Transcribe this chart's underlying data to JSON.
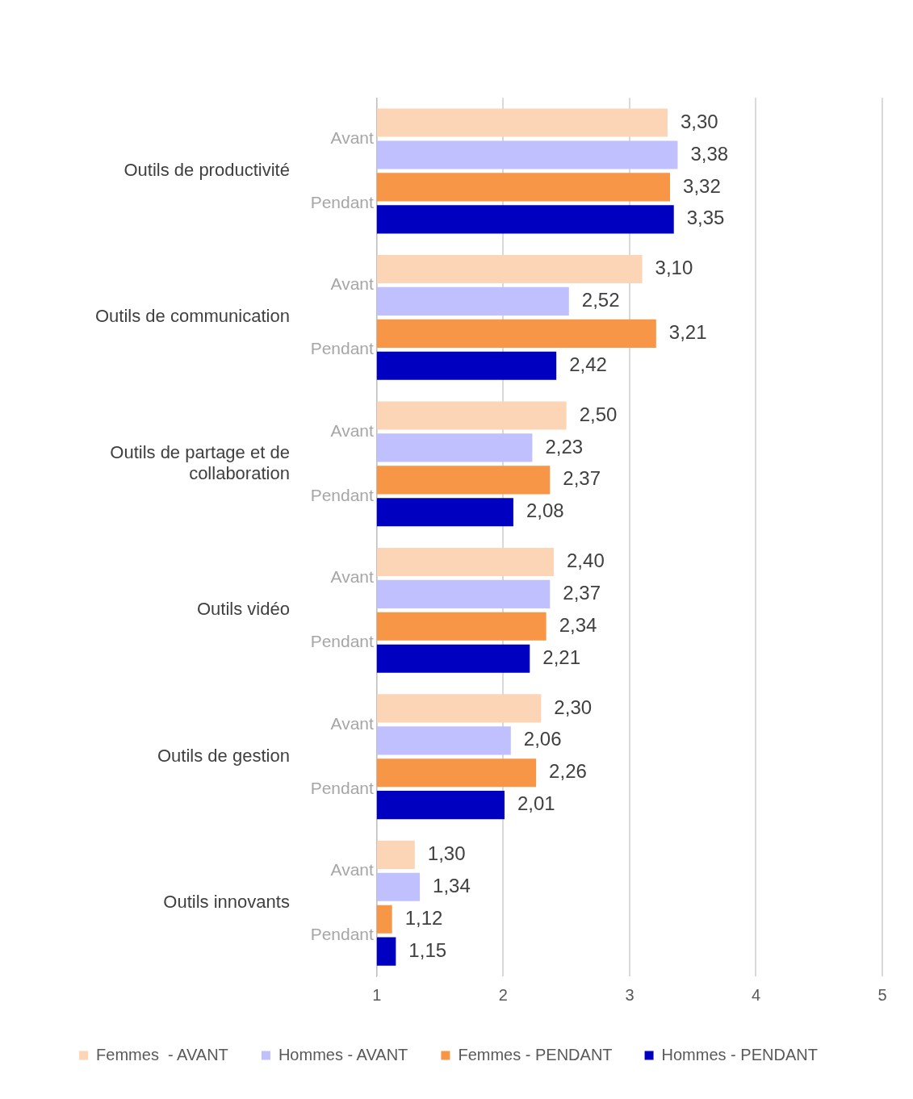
{
  "chart_data": {
    "type": "bar",
    "orientation": "horizontal",
    "categories": [
      "Outils de productivité",
      "Outils de communication",
      "Outils de partage et de collaboration",
      "Outils vidéo",
      "Outils de gestion",
      "Outils innovants"
    ],
    "series": [
      {
        "name": "Femmes  - AVANT",
        "color": "#fbd5b5",
        "values": [
          3.3,
          3.1,
          2.5,
          2.4,
          2.3,
          1.3
        ],
        "value_labels": [
          "3,30",
          "3,10",
          "2,50",
          "2,40",
          "2,30",
          "1,30"
        ]
      },
      {
        "name": "Hommes - AVANT",
        "color": "#c0c0ff",
        "values": [
          3.38,
          2.52,
          2.23,
          2.37,
          2.06,
          1.34
        ],
        "value_labels": [
          "3,38",
          "2,52",
          "2,23",
          "2,37",
          "2,06",
          "1,34"
        ]
      },
      {
        "name": "Femmes - PENDANT",
        "color": "#f79646",
        "values": [
          3.32,
          3.21,
          2.37,
          2.34,
          2.26,
          1.12
        ],
        "value_labels": [
          "3,32",
          "3,21",
          "2,37",
          "2,34",
          "2,26",
          "1,12"
        ]
      },
      {
        "name": "Hommes - PENDANT",
        "color": "#0000c0",
        "values": [
          3.35,
          2.42,
          2.08,
          2.21,
          2.01,
          1.15
        ],
        "value_labels": [
          "3,35",
          "2,42",
          "2,08",
          "2,21",
          "2,01",
          "1,15"
        ]
      }
    ],
    "xlim": [
      1,
      5
    ],
    "xticks": [
      1,
      2,
      3,
      4,
      5
    ],
    "grid": "x",
    "legend": "bottom",
    "annotations": [
      {
        "text": "Avant",
        "y": "Outils de productivité"
      },
      {
        "text": "Pendant",
        "y": "Outils de productivité"
      },
      {
        "text": "Avant",
        "y": "Outils de communication"
      },
      {
        "text": "Pendant",
        "y": "Outils de communication"
      },
      {
        "text": "Avant",
        "y": "Outils de partage et de collaboration"
      },
      {
        "text": "Pendant",
        "y": "Outils de partage et de collaboration"
      },
      {
        "text": "Avant",
        "y": "Outils vidéo"
      },
      {
        "text": "Pendant",
        "y": "Outils vidéo"
      },
      {
        "text": "Avant",
        "y": "Outils de gestion"
      },
      {
        "text": "Pendant",
        "y": "Outils de gestion"
      },
      {
        "text": "Avant",
        "y": "Outils innovants"
      },
      {
        "text": "Pendant",
        "y": "Outils innovants"
      }
    ]
  }
}
